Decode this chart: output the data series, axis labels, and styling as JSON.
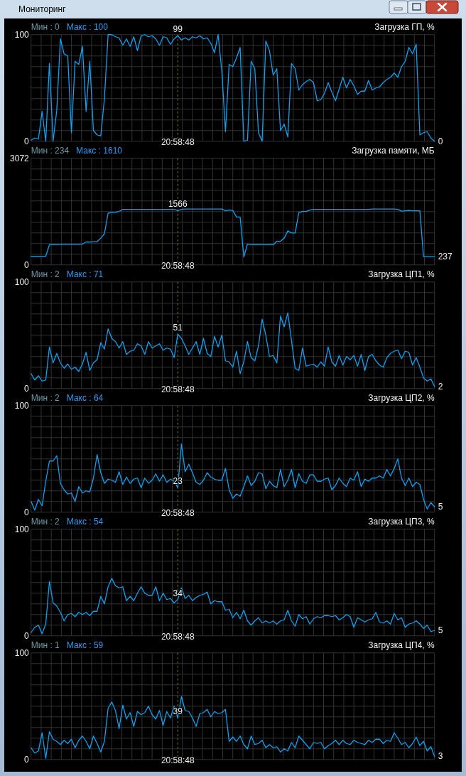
{
  "chart_data": [
    {
      "type": "other",
      "title": "Мониторинг"
    },
    {
      "type": "line",
      "title": "Загрузка ГП, %",
      "annotations": [
        "Мин : 0",
        "Макс : 100"
      ],
      "categories": [
        null,
        null,
        null,
        null,
        null,
        null,
        null,
        null,
        null,
        null,
        null,
        null,
        null,
        null,
        null,
        null,
        null,
        null,
        null,
        null,
        null,
        null,
        null,
        null,
        null,
        null,
        null,
        null,
        null,
        null,
        null,
        null,
        null,
        null,
        null,
        null,
        null,
        null,
        null,
        null,
        "20:58:48",
        null,
        null,
        null,
        null,
        null,
        null,
        null,
        null,
        null,
        null,
        null,
        null,
        null,
        null,
        null,
        null,
        null,
        null,
        null,
        null,
        null,
        null,
        null,
        null,
        null,
        null,
        null,
        null,
        null,
        null,
        null,
        null,
        null,
        null,
        null,
        null,
        null,
        null,
        null,
        null,
        null,
        null,
        null,
        null,
        null,
        null,
        null,
        null,
        null,
        null,
        null,
        null,
        null,
        null,
        null,
        null,
        null,
        null,
        null,
        null,
        null,
        null,
        null,
        null,
        null,
        null,
        null,
        null,
        null,
        null
      ],
      "ylim": [
        0,
        100
      ],
      "yticks": [
        0,
        {
          "value": 10,
          "label": null
        },
        {
          "value": 20,
          "label": null
        },
        {
          "value": 30,
          "label": null
        },
        {
          "value": 40,
          "label": null
        },
        {
          "value": 50,
          "label": null
        },
        {
          "value": 60,
          "label": null
        },
        {
          "value": 70,
          "label": null
        },
        {
          "value": 80,
          "label": null
        },
        {
          "value": 90,
          "label": null
        },
        100
      ],
      "grid": true,
      "ref_lines": [
        {
          "axis": "x",
          "value": "20:58:48",
          "line_style": "dashed",
          "color": "#7c7c1c"
        }
      ],
      "series": [
        {
          "color": "#12a0f0",
          "values": [
            1,
            3,
            2,
            28,
            0,
            73,
            0,
            29,
            96,
            82,
            80,
            8,
            75,
            72,
            89,
            28,
            75,
            10,
            6,
            5,
            40,
            100,
            100,
            98,
            97,
            90,
            96,
            89,
            98,
            85,
            99,
            100,
            98,
            99,
            96,
            90,
            98,
            97,
            91,
            96,
            99,
            95,
            97,
            95,
            98,
            97,
            99,
            96,
            97,
            92,
            83,
            100,
            66,
            9,
            72,
            70,
            78,
            88,
            0,
            1,
            75,
            68,
            8,
            0,
            94,
            85,
            62,
            68,
            10,
            16,
            4,
            73,
            68,
            48,
            53,
            56,
            58,
            55,
            38,
            39,
            45,
            55,
            46,
            38,
            49,
            60,
            50,
            58,
            52,
            44,
            47,
            47,
            57,
            48,
            50,
            51,
            55,
            58,
            60,
            64,
            60,
            70,
            75,
            88,
            82,
            91,
            6,
            8,
            9,
            3,
            0
          ],
          "value_labels": [
            null,
            null,
            null,
            null,
            null,
            null,
            null,
            null,
            null,
            null,
            null,
            null,
            null,
            null,
            null,
            null,
            null,
            null,
            null,
            null,
            null,
            null,
            null,
            null,
            null,
            null,
            null,
            null,
            null,
            null,
            null,
            null,
            null,
            null,
            null,
            null,
            null,
            null,
            null,
            null,
            "99",
            null,
            null,
            null,
            null,
            null,
            null,
            null,
            null,
            null,
            null,
            null,
            null,
            null,
            null,
            null,
            null,
            null,
            null,
            null,
            null,
            null,
            null,
            null,
            null,
            null,
            null,
            null,
            null,
            null,
            null,
            null,
            null,
            null,
            null,
            null,
            null,
            null,
            null,
            null,
            null,
            null,
            null,
            null,
            null,
            null,
            null,
            null,
            null,
            null,
            null,
            null,
            null,
            null,
            null,
            null,
            null,
            null,
            null,
            null,
            null,
            null,
            null,
            null,
            null,
            null,
            null,
            null,
            null,
            null,
            "0"
          ]
        }
      ]
    },
    {
      "type": "line",
      "title": "Загрузка памяти, МБ",
      "annotations": [
        "Мин : 234",
        "Макс : 1610"
      ],
      "categories": [
        null,
        null,
        null,
        null,
        null,
        null,
        null,
        null,
        null,
        null,
        null,
        null,
        null,
        null,
        null,
        null,
        null,
        null,
        null,
        null,
        null,
        null,
        null,
        null,
        null,
        null,
        null,
        null,
        null,
        null,
        null,
        null,
        null,
        null,
        null,
        null,
        null,
        null,
        null,
        null,
        "20:58:48",
        null,
        null,
        null,
        null,
        null,
        null,
        null,
        null,
        null,
        null,
        null,
        null,
        null,
        null,
        null,
        null,
        null,
        null,
        null,
        null,
        null,
        null,
        null,
        null,
        null,
        null,
        null,
        null,
        null,
        null,
        null,
        null,
        null,
        null,
        null,
        null,
        null,
        null,
        null,
        null,
        null,
        null,
        null,
        null,
        null,
        null,
        null,
        null,
        null,
        null,
        null,
        null,
        null,
        null,
        null,
        null,
        null,
        null,
        null,
        null,
        null,
        null,
        null,
        null,
        null,
        null,
        null,
        null,
        null,
        null
      ],
      "ylim": [
        0,
        3072
      ],
      "yticks": [
        0,
        {
          "value": 307.2,
          "label": null
        },
        {
          "value": 614.4,
          "label": null
        },
        {
          "value": 921.6,
          "label": null
        },
        {
          "value": 1228.8,
          "label": null
        },
        {
          "value": 1536,
          "label": null
        },
        {
          "value": 1843.2,
          "label": null
        },
        {
          "value": 2150.4,
          "label": null
        },
        {
          "value": 2457.6,
          "label": null
        },
        {
          "value": 2764.8,
          "label": null
        },
        3072
      ],
      "grid": true,
      "ref_lines": [
        {
          "axis": "x",
          "value": "20:58:48",
          "line_style": "dashed",
          "color": "#7c7c1c"
        }
      ],
      "series": [
        {
          "color": "#12a0f0",
          "values": [
            250,
            250,
            250,
            250,
            250,
            580,
            580,
            580,
            590,
            590,
            590,
            590,
            590,
            590,
            600,
            660,
            660,
            670,
            670,
            770,
            900,
            1490,
            1510,
            1520,
            1540,
            1600,
            1600,
            1600,
            1600,
            1600,
            1600,
            1600,
            1600,
            1600,
            1600,
            1600,
            1600,
            1600,
            1600,
            1600,
            1566,
            1600,
            1610,
            1610,
            1610,
            1610,
            1610,
            1610,
            1610,
            1610,
            1610,
            1610,
            1610,
            1560,
            1580,
            1570,
            1380,
            1380,
            230,
            600,
            580,
            580,
            580,
            580,
            580,
            580,
            580,
            680,
            680,
            770,
            980,
            920,
            920,
            1510,
            1540,
            1540,
            1580,
            1600,
            1600,
            1600,
            1600,
            1600,
            1600,
            1600,
            1600,
            1600,
            1600,
            1600,
            1600,
            1600,
            1600,
            1600,
            1600,
            1610,
            1610,
            1610,
            1610,
            1610,
            1610,
            1610,
            1600,
            1550,
            1560,
            1570,
            1560,
            1560,
            1560,
            240,
            240,
            240,
            237
          ],
          "value_labels": [
            null,
            null,
            null,
            null,
            null,
            null,
            null,
            null,
            null,
            null,
            null,
            null,
            null,
            null,
            null,
            null,
            null,
            null,
            null,
            null,
            null,
            null,
            null,
            null,
            null,
            null,
            null,
            null,
            null,
            null,
            null,
            null,
            null,
            null,
            null,
            null,
            null,
            null,
            null,
            null,
            "1566",
            null,
            null,
            null,
            null,
            null,
            null,
            null,
            null,
            null,
            null,
            null,
            null,
            null,
            null,
            null,
            null,
            null,
            null,
            null,
            null,
            null,
            null,
            null,
            null,
            null,
            null,
            null,
            null,
            null,
            null,
            null,
            null,
            null,
            null,
            null,
            null,
            null,
            null,
            null,
            null,
            null,
            null,
            null,
            null,
            null,
            null,
            null,
            null,
            null,
            null,
            null,
            null,
            null,
            null,
            null,
            null,
            null,
            null,
            null,
            null,
            null,
            null,
            null,
            null,
            null,
            null,
            null,
            null,
            null,
            "237"
          ]
        }
      ]
    },
    {
      "type": "line",
      "title": "Загрузка ЦП1, %",
      "annotations": [
        "Мин : 2",
        "Макс : 71"
      ],
      "categories": [
        null,
        null,
        null,
        null,
        null,
        null,
        null,
        null,
        null,
        null,
        null,
        null,
        null,
        null,
        null,
        null,
        null,
        null,
        null,
        null,
        null,
        null,
        null,
        null,
        null,
        null,
        null,
        null,
        null,
        null,
        null,
        null,
        null,
        null,
        null,
        null,
        null,
        null,
        null,
        null,
        "20:58:48",
        null,
        null,
        null,
        null,
        null,
        null,
        null,
        null,
        null,
        null,
        null,
        null,
        null,
        null,
        null,
        null,
        null,
        null,
        null,
        null,
        null,
        null,
        null,
        null,
        null,
        null,
        null,
        null,
        null,
        null,
        null,
        null,
        null,
        null,
        null,
        null,
        null,
        null,
        null,
        null,
        null,
        null,
        null,
        null,
        null,
        null,
        null,
        null,
        null,
        null,
        null,
        null,
        null,
        null,
        null,
        null,
        null,
        null,
        null,
        null,
        null,
        null,
        null,
        null,
        null,
        null,
        null,
        null,
        null,
        null
      ],
      "ylim": [
        0,
        100
      ],
      "yticks": [
        0,
        {
          "value": 10,
          "label": null
        },
        {
          "value": 20,
          "label": null
        },
        {
          "value": 30,
          "label": null
        },
        {
          "value": 40,
          "label": null
        },
        {
          "value": 50,
          "label": null
        },
        {
          "value": 60,
          "label": null
        },
        {
          "value": 70,
          "label": null
        },
        {
          "value": 80,
          "label": null
        },
        {
          "value": 90,
          "label": null
        },
        100
      ],
      "grid": true,
      "ref_lines": [
        {
          "axis": "x",
          "value": "20:58:48",
          "line_style": "dashed",
          "color": "#7c7c1c"
        }
      ],
      "series": [
        {
          "color": "#12a0f0",
          "values": [
            14,
            8,
            12,
            7,
            8,
            39,
            24,
            33,
            24,
            19,
            23,
            18,
            20,
            16,
            23,
            34,
            17,
            24,
            27,
            43,
            37,
            56,
            47,
            44,
            38,
            44,
            32,
            35,
            36,
            42,
            40,
            32,
            44,
            38,
            40,
            42,
            36,
            38,
            37,
            29,
            51,
            47,
            40,
            32,
            38,
            44,
            32,
            47,
            33,
            30,
            49,
            39,
            50,
            26,
            25,
            20,
            35,
            14,
            25,
            44,
            29,
            26,
            40,
            65,
            50,
            30,
            31,
            24,
            68,
            58,
            71,
            45,
            19,
            17,
            38,
            21,
            22,
            23,
            20,
            25,
            21,
            39,
            25,
            21,
            31,
            22,
            30,
            27,
            31,
            21,
            32,
            17,
            30,
            32,
            26,
            22,
            20,
            29,
            33,
            35,
            36,
            28,
            35,
            34,
            22,
            29,
            20,
            10,
            7,
            9,
            2
          ],
          "value_labels": [
            null,
            null,
            null,
            null,
            null,
            null,
            null,
            null,
            null,
            null,
            null,
            null,
            null,
            null,
            null,
            null,
            null,
            null,
            null,
            null,
            null,
            null,
            null,
            null,
            null,
            null,
            null,
            null,
            null,
            null,
            null,
            null,
            null,
            null,
            null,
            null,
            null,
            null,
            null,
            null,
            "51",
            null,
            null,
            null,
            null,
            null,
            null,
            null,
            null,
            null,
            null,
            null,
            null,
            null,
            null,
            null,
            null,
            null,
            null,
            null,
            null,
            null,
            null,
            null,
            null,
            null,
            null,
            null,
            null,
            null,
            null,
            null,
            null,
            null,
            null,
            null,
            null,
            null,
            null,
            null,
            null,
            null,
            null,
            null,
            null,
            null,
            null,
            null,
            null,
            null,
            null,
            null,
            null,
            null,
            null,
            null,
            null,
            null,
            null,
            null,
            null,
            null,
            null,
            null,
            null,
            null,
            null,
            null,
            null,
            null,
            "2"
          ]
        }
      ]
    },
    {
      "type": "line",
      "title": "Загрузка ЦП2, %",
      "annotations": [
        "Мин : 2",
        "Макс : 64"
      ],
      "categories": [
        null,
        null,
        null,
        null,
        null,
        null,
        null,
        null,
        null,
        null,
        null,
        null,
        null,
        null,
        null,
        null,
        null,
        null,
        null,
        null,
        null,
        null,
        null,
        null,
        null,
        null,
        null,
        null,
        null,
        null,
        null,
        null,
        null,
        null,
        null,
        null,
        null,
        null,
        null,
        null,
        "20:58:48",
        null,
        null,
        null,
        null,
        null,
        null,
        null,
        null,
        null,
        null,
        null,
        null,
        null,
        null,
        null,
        null,
        null,
        null,
        null,
        null,
        null,
        null,
        null,
        null,
        null,
        null,
        null,
        null,
        null,
        null,
        null,
        null,
        null,
        null,
        null,
        null,
        null,
        null,
        null,
        null,
        null,
        null,
        null,
        null,
        null,
        null,
        null,
        null,
        null,
        null,
        null,
        null,
        null,
        null,
        null,
        null,
        null,
        null,
        null,
        null,
        null,
        null,
        null,
        null,
        null,
        null,
        null,
        null,
        null,
        null
      ],
      "ylim": [
        0,
        100
      ],
      "yticks": [
        0,
        {
          "value": 10,
          "label": null
        },
        {
          "value": 20,
          "label": null
        },
        {
          "value": 30,
          "label": null
        },
        {
          "value": 40,
          "label": null
        },
        {
          "value": 50,
          "label": null
        },
        {
          "value": 60,
          "label": null
        },
        {
          "value": 70,
          "label": null
        },
        {
          "value": 80,
          "label": null
        },
        {
          "value": 90,
          "label": null
        },
        100
      ],
      "grid": true,
      "ref_lines": [
        {
          "axis": "x",
          "value": "20:58:48",
          "line_style": "dashed",
          "color": "#7c7c1c"
        }
      ],
      "series": [
        {
          "color": "#12a0f0",
          "values": [
            10,
            2,
            12,
            6,
            29,
            48,
            48,
            53,
            27,
            21,
            17,
            18,
            10,
            24,
            18,
            20,
            19,
            32,
            54,
            37,
            27,
            31,
            30,
            28,
            38,
            26,
            33,
            27,
            31,
            32,
            23,
            32,
            27,
            30,
            36,
            29,
            35,
            28,
            31,
            29,
            23,
            64,
            38,
            45,
            37,
            28,
            26,
            30,
            37,
            33,
            31,
            30,
            30,
            41,
            21,
            13,
            17,
            15,
            24,
            34,
            25,
            29,
            37,
            36,
            22,
            29,
            25,
            23,
            40,
            24,
            30,
            40,
            23,
            36,
            29,
            27,
            35,
            35,
            29,
            29,
            31,
            32,
            21,
            25,
            32,
            27,
            24,
            32,
            30,
            38,
            24,
            31,
            29,
            32,
            32,
            34,
            32,
            40,
            34,
            41,
            50,
            32,
            25,
            32,
            24,
            28,
            26,
            12,
            3,
            9,
            5
          ],
          "value_labels": [
            null,
            null,
            null,
            null,
            null,
            null,
            null,
            null,
            null,
            null,
            null,
            null,
            null,
            null,
            null,
            null,
            null,
            null,
            null,
            null,
            null,
            null,
            null,
            null,
            null,
            null,
            null,
            null,
            null,
            null,
            null,
            null,
            null,
            null,
            null,
            null,
            null,
            null,
            null,
            null,
            "23",
            null,
            null,
            null,
            null,
            null,
            null,
            null,
            null,
            null,
            null,
            null,
            null,
            null,
            null,
            null,
            null,
            null,
            null,
            null,
            null,
            null,
            null,
            null,
            null,
            null,
            null,
            null,
            null,
            null,
            null,
            null,
            null,
            null,
            null,
            null,
            null,
            null,
            null,
            null,
            null,
            null,
            null,
            null,
            null,
            null,
            null,
            null,
            null,
            null,
            null,
            null,
            null,
            null,
            null,
            null,
            null,
            null,
            null,
            null,
            null,
            null,
            null,
            null,
            null,
            null,
            null,
            null,
            null,
            null,
            "5"
          ]
        }
      ]
    },
    {
      "type": "line",
      "title": "Загрузка ЦП3, %",
      "annotations": [
        "Мин : 2",
        "Макс : 54"
      ],
      "categories": [
        null,
        null,
        null,
        null,
        null,
        null,
        null,
        null,
        null,
        null,
        null,
        null,
        null,
        null,
        null,
        null,
        null,
        null,
        null,
        null,
        null,
        null,
        null,
        null,
        null,
        null,
        null,
        null,
        null,
        null,
        null,
        null,
        null,
        null,
        null,
        null,
        null,
        null,
        null,
        null,
        "20:58:48",
        null,
        null,
        null,
        null,
        null,
        null,
        null,
        null,
        null,
        null,
        null,
        null,
        null,
        null,
        null,
        null,
        null,
        null,
        null,
        null,
        null,
        null,
        null,
        null,
        null,
        null,
        null,
        null,
        null,
        null,
        null,
        null,
        null,
        null,
        null,
        null,
        null,
        null,
        null,
        null,
        null,
        null,
        null,
        null,
        null,
        null,
        null,
        null,
        null,
        null,
        null,
        null,
        null,
        null,
        null,
        null,
        null,
        null,
        null,
        null,
        null,
        null,
        null,
        null,
        null,
        null,
        null,
        null,
        null,
        null
      ],
      "ylim": [
        0,
        100
      ],
      "yticks": [
        0,
        {
          "value": 10,
          "label": null
        },
        {
          "value": 20,
          "label": null
        },
        {
          "value": 30,
          "label": null
        },
        {
          "value": 40,
          "label": null
        },
        {
          "value": 50,
          "label": null
        },
        {
          "value": 60,
          "label": null
        },
        {
          "value": 70,
          "label": null
        },
        {
          "value": 80,
          "label": null
        },
        {
          "value": 90,
          "label": null
        },
        100
      ],
      "grid": true,
      "ref_lines": [
        {
          "axis": "x",
          "value": "20:58:48",
          "line_style": "dashed",
          "color": "#7c7c1c"
        }
      ],
      "series": [
        {
          "color": "#12a0f0",
          "values": [
            3,
            8,
            10,
            2,
            11,
            51,
            31,
            28,
            22,
            14,
            20,
            21,
            18,
            22,
            20,
            22,
            19,
            23,
            23,
            37,
            30,
            46,
            54,
            47,
            45,
            46,
            33,
            37,
            33,
            40,
            46,
            40,
            38,
            38,
            46,
            33,
            40,
            34,
            35,
            31,
            34,
            45,
            35,
            38,
            33,
            36,
            38,
            39,
            41,
            30,
            33,
            32,
            32,
            24,
            25,
            17,
            22,
            16,
            24,
            14,
            10,
            14,
            17,
            12,
            14,
            12,
            14,
            11,
            14,
            15,
            24,
            14,
            9,
            20,
            16,
            18,
            11,
            16,
            18,
            17,
            19,
            19,
            18,
            19,
            15,
            17,
            20,
            18,
            8,
            17,
            15,
            13,
            15,
            16,
            22,
            13,
            12,
            14,
            11,
            21,
            15,
            17,
            8,
            11,
            12,
            14,
            11,
            7,
            10,
            4,
            5
          ],
          "value_labels": [
            null,
            null,
            null,
            null,
            null,
            null,
            null,
            null,
            null,
            null,
            null,
            null,
            null,
            null,
            null,
            null,
            null,
            null,
            null,
            null,
            null,
            null,
            null,
            null,
            null,
            null,
            null,
            null,
            null,
            null,
            null,
            null,
            null,
            null,
            null,
            null,
            null,
            null,
            null,
            null,
            "34",
            null,
            null,
            null,
            null,
            null,
            null,
            null,
            null,
            null,
            null,
            null,
            null,
            null,
            null,
            null,
            null,
            null,
            null,
            null,
            null,
            null,
            null,
            null,
            null,
            null,
            null,
            null,
            null,
            null,
            null,
            null,
            null,
            null,
            null,
            null,
            null,
            null,
            null,
            null,
            null,
            null,
            null,
            null,
            null,
            null,
            null,
            null,
            null,
            null,
            null,
            null,
            null,
            null,
            null,
            null,
            null,
            null,
            null,
            null,
            null,
            null,
            null,
            null,
            null,
            null,
            null,
            null,
            null,
            null,
            "5"
          ]
        }
      ]
    },
    {
      "type": "line",
      "title": "Загрузка ЦП4, %",
      "annotations": [
        "Мин : 1",
        "Макс : 59"
      ],
      "categories": [
        null,
        null,
        null,
        null,
        null,
        null,
        null,
        null,
        null,
        null,
        null,
        null,
        null,
        null,
        null,
        null,
        null,
        null,
        null,
        null,
        null,
        null,
        null,
        null,
        null,
        null,
        null,
        null,
        null,
        null,
        null,
        null,
        null,
        null,
        null,
        null,
        null,
        null,
        null,
        null,
        "20:58:48",
        null,
        null,
        null,
        null,
        null,
        null,
        null,
        null,
        null,
        null,
        null,
        null,
        null,
        null,
        null,
        null,
        null,
        null,
        null,
        null,
        null,
        null,
        null,
        null,
        null,
        null,
        null,
        null,
        null,
        null,
        null,
        null,
        null,
        null,
        null,
        null,
        null,
        null,
        null,
        null,
        null,
        null,
        null,
        null,
        null,
        null,
        null,
        null,
        null,
        null,
        null,
        null,
        null,
        null,
        null,
        null,
        null,
        null,
        null,
        null,
        null,
        null,
        null,
        null,
        null,
        null,
        null,
        null,
        null,
        null
      ],
      "ylim": [
        0,
        100
      ],
      "yticks": [
        0,
        {
          "value": 10,
          "label": null
        },
        {
          "value": 20,
          "label": null
        },
        {
          "value": 30,
          "label": null
        },
        {
          "value": 40,
          "label": null
        },
        {
          "value": 50,
          "label": null
        },
        {
          "value": 60,
          "label": null
        },
        {
          "value": 70,
          "label": null
        },
        {
          "value": 80,
          "label": null
        },
        {
          "value": 90,
          "label": null
        },
        100
      ],
      "grid": true,
      "ref_lines": [
        {
          "axis": "x",
          "value": "20:58:48",
          "line_style": "dashed",
          "color": "#7c7c1c"
        }
      ],
      "series": [
        {
          "color": "#12a0f0",
          "values": [
            11,
            6,
            8,
            25,
            1,
            26,
            19,
            17,
            14,
            18,
            15,
            19,
            11,
            18,
            22,
            17,
            10,
            22,
            15,
            7,
            17,
            48,
            54,
            46,
            29,
            51,
            38,
            44,
            31,
            45,
            42,
            44,
            50,
            42,
            38,
            46,
            32,
            45,
            39,
            50,
            39,
            59,
            46,
            45,
            39,
            31,
            43,
            44,
            47,
            40,
            45,
            43,
            44,
            47,
            17,
            21,
            17,
            22,
            14,
            10,
            22,
            14,
            15,
            18,
            11,
            14,
            11,
            12,
            7,
            10,
            8,
            16,
            11,
            22,
            18,
            14,
            10,
            16,
            15,
            16,
            10,
            13,
            15,
            18,
            14,
            18,
            15,
            14,
            18,
            16,
            15,
            14,
            18,
            16,
            19,
            19,
            15,
            18,
            17,
            25,
            20,
            14,
            16,
            11,
            15,
            21,
            13,
            17,
            8,
            12,
            3
          ],
          "value_labels": [
            null,
            null,
            null,
            null,
            null,
            null,
            null,
            null,
            null,
            null,
            null,
            null,
            null,
            null,
            null,
            null,
            null,
            null,
            null,
            null,
            null,
            null,
            null,
            null,
            null,
            null,
            null,
            null,
            null,
            null,
            null,
            null,
            null,
            null,
            null,
            null,
            null,
            null,
            null,
            null,
            "39",
            null,
            null,
            null,
            null,
            null,
            null,
            null,
            null,
            null,
            null,
            null,
            null,
            null,
            null,
            null,
            null,
            null,
            null,
            null,
            null,
            null,
            null,
            null,
            null,
            null,
            null,
            null,
            null,
            null,
            null,
            null,
            null,
            null,
            null,
            null,
            null,
            null,
            null,
            null,
            null,
            null,
            null,
            null,
            null,
            null,
            null,
            null,
            null,
            null,
            null,
            null,
            null,
            null,
            null,
            null,
            null,
            null,
            null,
            null,
            null,
            null,
            null,
            null,
            null,
            null,
            null,
            null,
            null,
            null,
            "3"
          ]
        }
      ]
    }
  ]
}
